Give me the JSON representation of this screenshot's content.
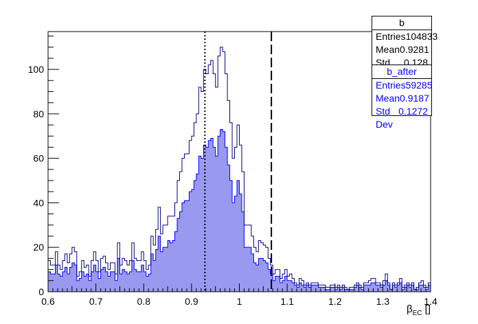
{
  "chart_data": {
    "type": "histogram",
    "xlim": [
      0.6,
      1.4
    ],
    "ylim": [
      0,
      117
    ],
    "xticks": [
      0.6,
      0.7,
      0.8,
      0.9,
      1.0,
      1.1,
      1.2,
      1.3,
      1.4
    ],
    "xtick_labels": [
      "0.6",
      "0.7",
      "0.8",
      "0.9",
      "1",
      "1.1",
      "1.2",
      "1.3",
      "1.4"
    ],
    "yticks": [
      0,
      20,
      40,
      60,
      80,
      100
    ],
    "ytick_labels": [
      "0",
      "20",
      "40",
      "60",
      "80",
      "100"
    ],
    "xlabel_main": "β",
    "xlabel_sub": "EC",
    "xlabel_unit": " []",
    "grid": false,
    "legend_placement": "top-right",
    "vertical_lines": [
      {
        "x": 0.928,
        "style": "dotted"
      },
      {
        "x": 1.067,
        "style": "dashed"
      }
    ],
    "series": [
      {
        "name": "b",
        "style": "step",
        "color": "#000080",
        "x_start": 0.6,
        "bin_width": 0.005,
        "values": [
          14,
          12,
          12,
          18,
          12,
          10,
          14,
          17,
          13,
          17,
          20,
          18,
          7,
          9,
          14,
          11,
          12,
          7,
          14,
          18,
          14,
          9,
          15,
          16,
          13,
          10,
          13,
          13,
          8,
          22,
          12,
          15,
          14,
          12,
          14,
          22,
          15,
          14,
          14,
          18,
          14,
          10,
          12,
          25,
          21,
          28,
          38,
          26,
          30,
          30,
          34,
          34,
          34,
          40,
          50,
          54,
          60,
          62,
          62,
          68,
          70,
          76,
          80,
          92,
          90,
          100,
          98,
          102,
          104,
          98,
          92,
          106,
          110,
          108,
          98,
          86,
          76,
          60,
          65,
          75,
          66,
          54,
          30,
          30,
          30,
          25,
          20,
          18,
          23,
          22,
          21,
          20,
          15,
          12,
          8,
          10,
          10,
          6,
          8,
          10,
          7,
          8,
          6,
          4,
          3,
          6,
          5,
          3,
          4,
          3,
          4,
          4,
          4,
          3,
          3,
          3,
          2,
          2,
          3,
          3,
          2,
          3,
          2,
          3,
          2,
          1,
          2,
          2,
          3,
          4,
          3,
          2,
          4,
          4,
          5,
          6,
          6,
          4,
          4,
          3,
          5,
          8,
          4,
          1,
          4,
          3,
          4,
          6,
          2,
          3,
          4,
          3,
          4,
          1,
          2,
          4,
          5,
          3,
          2,
          4
        ]
      },
      {
        "name": "b_after",
        "style": "filled",
        "color": "#9999f0",
        "edge": "#0000ff",
        "x_start": 0.6,
        "bin_width": 0.005,
        "values": [
          9,
          8,
          8,
          12,
          8,
          7,
          9,
          11,
          8,
          11,
          13,
          12,
          5,
          6,
          9,
          7,
          8,
          5,
          9,
          12,
          9,
          6,
          10,
          11,
          9,
          7,
          9,
          9,
          5,
          15,
          8,
          10,
          9,
          8,
          9,
          14,
          10,
          9,
          9,
          12,
          9,
          7,
          8,
          17,
          14,
          19,
          25,
          18,
          20,
          20,
          23,
          22,
          23,
          27,
          33,
          36,
          40,
          41,
          41,
          45,
          46,
          50,
          53,
          61,
          60,
          66,
          65,
          68,
          69,
          65,
          61,
          70,
          73,
          72,
          65,
          57,
          50,
          40,
          43,
          50,
          44,
          36,
          20,
          20,
          20,
          17,
          13,
          12,
          15,
          15,
          14,
          13,
          10,
          8,
          5,
          7,
          7,
          4,
          5,
          7,
          5,
          5,
          4,
          3,
          2,
          4,
          3,
          2,
          3,
          2,
          3,
          3,
          3,
          2,
          2,
          2,
          1,
          1,
          2,
          2,
          1,
          2,
          1,
          2,
          1,
          1,
          1,
          1,
          2,
          3,
          2,
          1,
          3,
          3,
          3,
          4,
          4,
          3,
          3,
          2,
          3,
          5,
          3,
          1,
          3,
          2,
          3,
          4,
          1,
          2,
          3,
          2,
          3,
          1,
          1,
          3,
          3,
          2,
          1,
          3
        ]
      }
    ]
  },
  "stats": {
    "box1": {
      "title": "b",
      "entries_label": "Entries",
      "entries_value": "104833",
      "mean_label": "Mean",
      "mean_value": "0.9281",
      "std_label": "Std Dev",
      "std_value": "0.128"
    },
    "box2": {
      "title": "b_after",
      "entries_label": "Entries",
      "entries_value": "59285",
      "mean_label": "Mean",
      "mean_value": "0.9187",
      "std_label": "Std Dev",
      "std_value": "0.1272"
    }
  }
}
